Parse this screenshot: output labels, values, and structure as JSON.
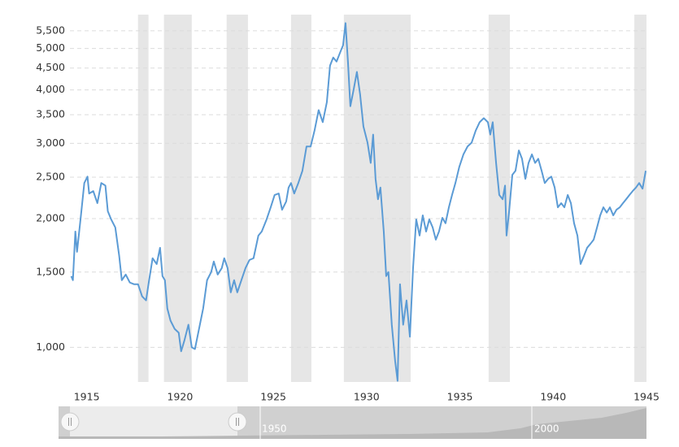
{
  "chart_data": {
    "type": "line",
    "log_y": true,
    "grid": true,
    "xlim": [
      1914.1,
      1945
    ],
    "xticks": [
      1915,
      1920,
      1925,
      1930,
      1935,
      1940,
      1945
    ],
    "ylim": [
      830,
      6000
    ],
    "yticks": [
      {
        "value": 1000,
        "label": "1,000"
      },
      {
        "value": 1500,
        "label": "1,500"
      },
      {
        "value": 2000,
        "label": "2,000"
      },
      {
        "value": 2500,
        "label": "2,500"
      },
      {
        "value": 3000,
        "label": "3,000"
      },
      {
        "value": 3500,
        "label": "3,500"
      },
      {
        "value": 4000,
        "label": "4,000"
      },
      {
        "value": 4500,
        "label": "4,500"
      },
      {
        "value": 5000,
        "label": "5,000"
      },
      {
        "value": 5500,
        "label": "5,500"
      }
    ],
    "band_color": "#e6e6e6",
    "bands": [
      [
        1917.75,
        1918.31
      ],
      [
        1919.14,
        1920.63
      ],
      [
        1922.5,
        1923.64
      ],
      [
        1925.95,
        1927.04
      ],
      [
        1928.78,
        1932.36
      ],
      [
        1936.54,
        1937.68
      ],
      [
        1944.35,
        1945
      ]
    ],
    "x": [
      1914.17,
      1914.26,
      1914.39,
      1914.48,
      1914.69,
      1914.87,
      1915.04,
      1915.13,
      1915.35,
      1915.57,
      1915.78,
      1916.0,
      1916.13,
      1916.31,
      1916.53,
      1916.74,
      1916.88,
      1917.09,
      1917.31,
      1917.53,
      1917.75,
      1917.97,
      1918.18,
      1918.31,
      1918.53,
      1918.75,
      1918.93,
      1919.06,
      1919.19,
      1919.32,
      1919.49,
      1919.71,
      1919.93,
      1920.06,
      1920.23,
      1920.45,
      1920.63,
      1920.8,
      1921.02,
      1921.24,
      1921.45,
      1921.67,
      1921.81,
      1922.02,
      1922.24,
      1922.37,
      1922.55,
      1922.72,
      1922.9,
      1923.07,
      1923.29,
      1923.51,
      1923.72,
      1923.94,
      1924.2,
      1924.38,
      1924.64,
      1924.86,
      1925.07,
      1925.29,
      1925.47,
      1925.69,
      1925.82,
      1925.95,
      1926.12,
      1926.34,
      1926.56,
      1926.78,
      1927.0,
      1927.21,
      1927.43,
      1927.65,
      1927.87,
      1928.04,
      1928.21,
      1928.39,
      1928.56,
      1928.74,
      1928.87,
      1929.0,
      1929.13,
      1929.3,
      1929.48,
      1929.65,
      1929.83,
      1930.05,
      1930.22,
      1930.35,
      1930.48,
      1930.61,
      1930.74,
      1930.92,
      1931.05,
      1931.17,
      1931.35,
      1931.53,
      1931.66,
      1931.79,
      1931.96,
      1932.14,
      1932.32,
      1932.49,
      1932.66,
      1932.84,
      1933.01,
      1933.19,
      1933.36,
      1933.54,
      1933.71,
      1933.88,
      1934.06,
      1934.23,
      1934.41,
      1934.58,
      1934.76,
      1934.97,
      1935.19,
      1935.41,
      1935.63,
      1935.85,
      1936.06,
      1936.28,
      1936.5,
      1936.63,
      1936.76,
      1936.94,
      1937.11,
      1937.29,
      1937.42,
      1937.5,
      1937.64,
      1937.81,
      1937.98,
      1938.16,
      1938.33,
      1938.51,
      1938.68,
      1938.86,
      1939.03,
      1939.2,
      1939.38,
      1939.55,
      1939.73,
      1939.9,
      1940.08,
      1940.25,
      1940.43,
      1940.6,
      1940.78,
      1940.95,
      1941.12,
      1941.3,
      1941.47,
      1941.65,
      1941.82,
      1942.0,
      1942.17,
      1942.35,
      1942.52,
      1942.69,
      1942.87,
      1943.04,
      1943.22,
      1943.39,
      1943.57,
      1943.74,
      1943.91,
      1944.09,
      1944.26,
      1944.44,
      1944.61,
      1944.79,
      1944.96
    ],
    "series": [
      {
        "color": "#5b9bd5",
        "values": [
          1468,
          1436,
          1866,
          1673,
          2036,
          2423,
          2508,
          2290,
          2320,
          2174,
          2423,
          2390,
          2082,
          1992,
          1908,
          1637,
          1436,
          1480,
          1418,
          1405,
          1405,
          1316,
          1288,
          1405,
          1616,
          1566,
          1710,
          1468,
          1436,
          1233,
          1155,
          1105,
          1082,
          979,
          1036,
          1130,
          1000,
          991,
          1105,
          1233,
          1436,
          1500,
          1588,
          1480,
          1533,
          1616,
          1533,
          1345,
          1436,
          1345,
          1436,
          1533,
          1601,
          1616,
          1826,
          1866,
          1992,
          2126,
          2272,
          2290,
          2098,
          2193,
          2365,
          2423,
          2290,
          2423,
          2588,
          2950,
          2950,
          3215,
          3588,
          3362,
          3745,
          4560,
          4762,
          4660,
          4867,
          5088,
          5732,
          4660,
          3665,
          3995,
          4408,
          3912,
          3285,
          3012,
          2700,
          3145,
          2478,
          2220,
          2365,
          1866,
          1468,
          1500,
          1130,
          929,
          835,
          1405,
          1130,
          1288,
          1059,
          1533,
          1992,
          1826,
          2036,
          1866,
          1992,
          1908,
          1786,
          1866,
          2009,
          1951,
          2126,
          2272,
          2423,
          2645,
          2827,
          2950,
          3012,
          3215,
          3362,
          3436,
          3362,
          3145,
          3362,
          2700,
          2272,
          2220,
          2390,
          1826,
          2082,
          2532,
          2588,
          2888,
          2761,
          2478,
          2700,
          2827,
          2700,
          2761,
          2588,
          2423,
          2478,
          2508,
          2365,
          2126,
          2174,
          2126,
          2272,
          2174,
          1951,
          1826,
          1566,
          1637,
          1710,
          1747,
          1786,
          1908,
          2036,
          2126,
          2066,
          2126,
          2036,
          2098,
          2126,
          2174,
          2220,
          2272,
          2320,
          2365,
          2423,
          2350,
          2588
        ]
      }
    ],
    "navigator_labels": [
      "1950",
      "2000"
    ]
  }
}
